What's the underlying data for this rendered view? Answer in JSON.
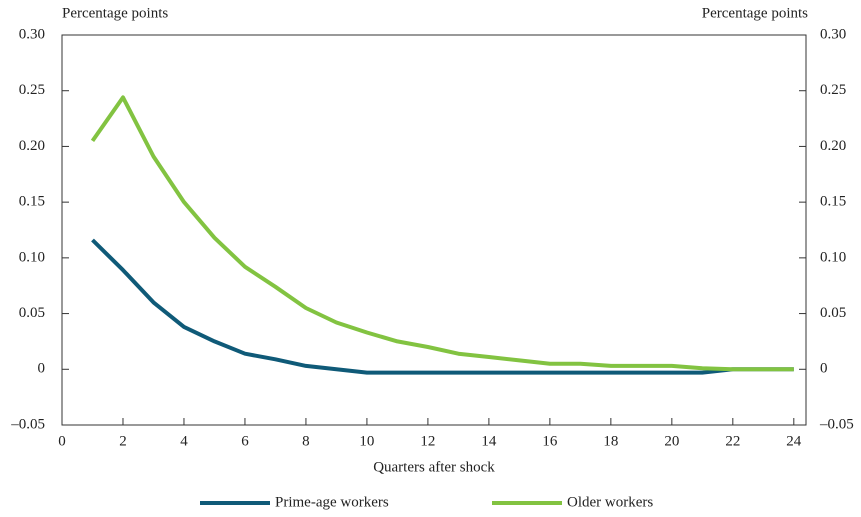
{
  "chart_data": {
    "type": "line",
    "y_label": "Percentage points",
    "y2_label": "Percentage points",
    "x_label": "Quarters after shock",
    "x": [
      1,
      2,
      3,
      4,
      5,
      6,
      7,
      8,
      9,
      10,
      11,
      12,
      13,
      14,
      15,
      16,
      17,
      18,
      19,
      20,
      21,
      22,
      23,
      24
    ],
    "xlim": [
      0,
      24.4
    ],
    "xticks": [
      0,
      2,
      4,
      6,
      8,
      10,
      12,
      14,
      16,
      18,
      20,
      22,
      24
    ],
    "ylim": [
      -0.05,
      0.3
    ],
    "yticks": [
      {
        "value": -0.05,
        "label": "–0.05"
      },
      0,
      {
        "value": 0.05,
        "label": "0.05"
      },
      {
        "value": 0.1,
        "label": "0.10"
      },
      {
        "value": 0.15,
        "label": "0.15"
      },
      {
        "value": 0.2,
        "label": "0.20"
      },
      {
        "value": 0.25,
        "label": "0.25"
      },
      {
        "value": 0.3,
        "label": "0.30"
      }
    ],
    "y2lim": [
      -0.05,
      0.3
    ],
    "y2ticks": [
      {
        "value": -0.05,
        "label": "–0.05"
      },
      0,
      {
        "value": 0.05,
        "label": "0.05"
      },
      {
        "value": 0.1,
        "label": "0.10"
      },
      {
        "value": 0.15,
        "label": "0.15"
      },
      {
        "value": 0.2,
        "label": "0.20"
      },
      {
        "value": 0.25,
        "label": "0.25"
      },
      {
        "value": 0.3,
        "label": "0.30"
      }
    ],
    "legend": "bottom",
    "series": [
      {
        "name": "Prime-age workers",
        "color": "#0f5a78",
        "values": [
          0.116,
          0.089,
          0.06,
          0.038,
          0.025,
          0.014,
          0.009,
          0.003,
          0.0,
          -0.003,
          -0.003,
          -0.003,
          -0.003,
          -0.003,
          -0.003,
          -0.003,
          -0.003,
          -0.003,
          -0.003,
          -0.003,
          -0.003,
          0,
          0,
          0
        ]
      },
      {
        "name": "Older workers",
        "color": "#82c341",
        "values": [
          0.205,
          0.244,
          0.191,
          0.15,
          0.118,
          0.092,
          0.074,
          0.055,
          0.042,
          0.033,
          0.025,
          0.02,
          0.014,
          0.011,
          0.008,
          0.005,
          0.005,
          0.003,
          0.003,
          0.003,
          0.001,
          0,
          0,
          0
        ]
      }
    ]
  }
}
